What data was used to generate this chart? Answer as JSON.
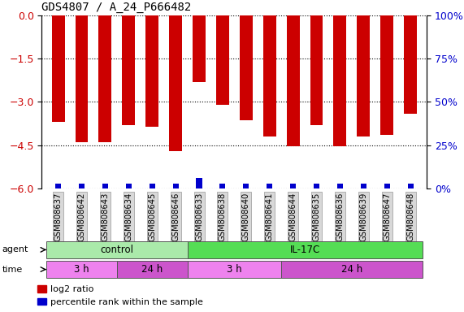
{
  "title": "GDS4807 / A_24_P666482",
  "samples": [
    "GSM808637",
    "GSM808642",
    "GSM808643",
    "GSM808634",
    "GSM808645",
    "GSM808646",
    "GSM808633",
    "GSM808638",
    "GSM808640",
    "GSM808641",
    "GSM808644",
    "GSM808635",
    "GSM808636",
    "GSM808639",
    "GSM808647",
    "GSM808648"
  ],
  "log2_ratio": [
    -3.7,
    -4.4,
    -4.4,
    -3.8,
    -3.85,
    -4.7,
    -2.3,
    -3.1,
    -3.65,
    -4.2,
    -4.55,
    -3.8,
    -4.55,
    -4.2,
    -4.15,
    -3.4
  ],
  "percentile": [
    3,
    3,
    3,
    3,
    3,
    3,
    6,
    3,
    3,
    3,
    3,
    3,
    3,
    3,
    3,
    3
  ],
  "ylim_left": [
    -6,
    0
  ],
  "ylim_right": [
    0,
    100
  ],
  "yticks_left": [
    0,
    -1.5,
    -3,
    -4.5,
    -6
  ],
  "yticks_right": [
    0,
    25,
    50,
    75,
    100
  ],
  "agent_groups": [
    {
      "label": "control",
      "start": 0,
      "end": 6,
      "color": "#aaeaaa"
    },
    {
      "label": "IL-17C",
      "start": 6,
      "end": 16,
      "color": "#55dd55"
    }
  ],
  "time_groups": [
    {
      "label": "3 h",
      "start": 0,
      "end": 3,
      "color": "#ee82ee"
    },
    {
      "label": "24 h",
      "start": 3,
      "end": 6,
      "color": "#cc55cc"
    },
    {
      "label": "3 h",
      "start": 6,
      "end": 10,
      "color": "#ee82ee"
    },
    {
      "label": "24 h",
      "start": 10,
      "end": 16,
      "color": "#cc55cc"
    }
  ],
  "bar_width": 0.55,
  "red_color": "#cc0000",
  "blue_color": "#0000cc",
  "background_color": "#ffffff",
  "tick_label_color_left": "#cc0000",
  "tick_label_color_right": "#0000cc",
  "legend_red": "log2 ratio",
  "legend_blue": "percentile rank within the sample"
}
